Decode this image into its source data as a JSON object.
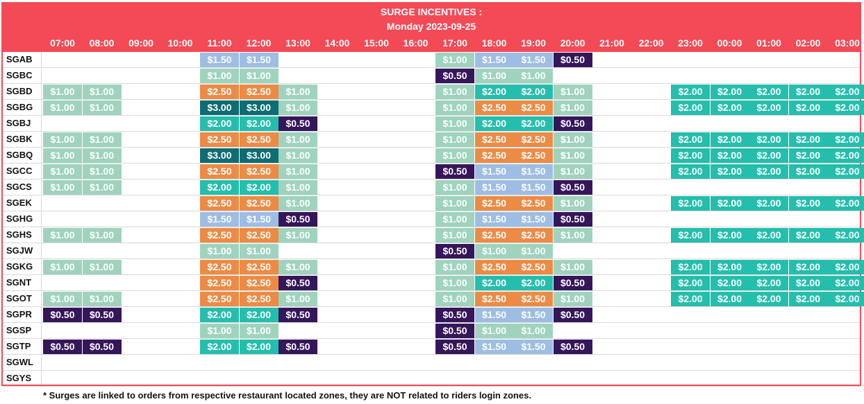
{
  "title_line1": "SURGE INCENTIVES :",
  "title_line2": "Monday 2023-09-25",
  "hours": [
    "07:00",
    "08:00",
    "09:00",
    "10:00",
    "11:00",
    "12:00",
    "13:00",
    "14:00",
    "15:00",
    "16:00",
    "17:00",
    "18:00",
    "19:00",
    "20:00",
    "21:00",
    "22:00",
    "23:00",
    "00:00",
    "01:00",
    "02:00",
    "03:00"
  ],
  "colors": {
    "$0.50": "#35165a",
    "$1.00": "#9fd3bd",
    "$1.50": "#9dbde4",
    "$2.00": "#25beac",
    "$2.50": "#ec8b45",
    "$3.00": "#0e6c73"
  },
  "rows": [
    {
      "zone": "SGAB",
      "cells": [
        "",
        "",
        "",
        "",
        "$1.50",
        "$1.50",
        "",
        "",
        "",
        "",
        "$1.00",
        "$1.50",
        "$1.50",
        "$0.50",
        "",
        "",
        "",
        "",
        "",
        "",
        ""
      ]
    },
    {
      "zone": "SGBC",
      "cells": [
        "",
        "",
        "",
        "",
        "$1.00",
        "$1.00",
        "",
        "",
        "",
        "",
        "$0.50",
        "$1.00",
        "$1.00",
        "",
        "",
        "",
        "",
        "",
        "",
        "",
        ""
      ]
    },
    {
      "zone": "SGBD",
      "cells": [
        "$1.00",
        "$1.00",
        "",
        "",
        "$2.50",
        "$2.50",
        "$1.00",
        "",
        "",
        "",
        "$1.00",
        "$2.00",
        "$2.00",
        "$1.00",
        "",
        "",
        "$2.00",
        "$2.00",
        "$2.00",
        "$2.00",
        "$2.00"
      ]
    },
    {
      "zone": "SGBG",
      "cells": [
        "$1.00",
        "$1.00",
        "",
        "",
        "$3.00",
        "$3.00",
        "$1.00",
        "",
        "",
        "",
        "$1.00",
        "$2.50",
        "$2.50",
        "$1.00",
        "",
        "",
        "$2.00",
        "$2.00",
        "$2.00",
        "$2.00",
        "$2.00"
      ]
    },
    {
      "zone": "SGBJ",
      "cells": [
        "",
        "",
        "",
        "",
        "$2.00",
        "$2.00",
        "$0.50",
        "",
        "",
        "",
        "$1.00",
        "$2.00",
        "$2.00",
        "$0.50",
        "",
        "",
        "",
        "",
        "",
        "",
        ""
      ]
    },
    {
      "zone": "SGBK",
      "cells": [
        "$1.00",
        "$1.00",
        "",
        "",
        "$2.50",
        "$2.50",
        "$1.00",
        "",
        "",
        "",
        "$1.00",
        "$2.50",
        "$2.50",
        "$1.00",
        "",
        "",
        "$2.00",
        "$2.00",
        "$2.00",
        "$2.00",
        "$2.00"
      ]
    },
    {
      "zone": "SGBQ",
      "cells": [
        "$1.00",
        "$1.00",
        "",
        "",
        "$3.00",
        "$3.00",
        "$1.00",
        "",
        "",
        "",
        "$1.00",
        "$2.50",
        "$2.50",
        "$1.00",
        "",
        "",
        "$2.00",
        "$2.00",
        "$2.00",
        "$2.00",
        "$2.00"
      ]
    },
    {
      "zone": "SGCC",
      "cells": [
        "$1.00",
        "$1.00",
        "",
        "",
        "$2.50",
        "$2.50",
        "$1.00",
        "",
        "",
        "",
        "$0.50",
        "$1.50",
        "$1.50",
        "$1.00",
        "",
        "",
        "$2.00",
        "$2.00",
        "$2.00",
        "$2.00",
        "$2.00"
      ]
    },
    {
      "zone": "SGCS",
      "cells": [
        "$1.00",
        "$1.00",
        "",
        "",
        "$2.00",
        "$2.00",
        "$1.00",
        "",
        "",
        "",
        "$1.00",
        "$1.50",
        "$1.50",
        "$0.50",
        "",
        "",
        "",
        "",
        "",
        "",
        ""
      ]
    },
    {
      "zone": "SGEK",
      "cells": [
        "",
        "",
        "",
        "",
        "$2.50",
        "$2.50",
        "$1.00",
        "",
        "",
        "",
        "$1.00",
        "$2.50",
        "$2.50",
        "$1.00",
        "",
        "",
        "$2.00",
        "$2.00",
        "$2.00",
        "$2.00",
        "$2.00"
      ]
    },
    {
      "zone": "SGHG",
      "cells": [
        "",
        "",
        "",
        "",
        "$1.50",
        "$1.50",
        "$0.50",
        "",
        "",
        "",
        "$1.00",
        "$1.50",
        "$1.50",
        "$0.50",
        "",
        "",
        "",
        "",
        "",
        "",
        ""
      ]
    },
    {
      "zone": "SGHS",
      "cells": [
        "$1.00",
        "$1.00",
        "",
        "",
        "$2.50",
        "$2.50",
        "$1.00",
        "",
        "",
        "",
        "$1.00",
        "$2.50",
        "$2.50",
        "$1.00",
        "",
        "",
        "$2.00",
        "$2.00",
        "$2.00",
        "$2.00",
        "$2.00"
      ]
    },
    {
      "zone": "SGJW",
      "cells": [
        "",
        "",
        "",
        "",
        "$1.00",
        "$1.00",
        "",
        "",
        "",
        "",
        "$0.50",
        "$1.00",
        "$1.00",
        "",
        "",
        "",
        "",
        "",
        "",
        "",
        ""
      ]
    },
    {
      "zone": "SGKG",
      "cells": [
        "$1.00",
        "$1.00",
        "",
        "",
        "$2.50",
        "$2.50",
        "$1.00",
        "",
        "",
        "",
        "$1.00",
        "$2.50",
        "$2.50",
        "$1.00",
        "",
        "",
        "$2.00",
        "$2.00",
        "$2.00",
        "$2.00",
        "$2.00"
      ]
    },
    {
      "zone": "SGNT",
      "cells": [
        "",
        "",
        "",
        "",
        "$2.50",
        "$2.50",
        "$0.50",
        "",
        "",
        "",
        "$1.00",
        "$2.00",
        "$2.00",
        "$0.50",
        "",
        "",
        "$2.00",
        "$2.00",
        "$2.00",
        "$2.00",
        "$2.00"
      ]
    },
    {
      "zone": "SGOT",
      "cells": [
        "$1.00",
        "$1.00",
        "",
        "",
        "$2.50",
        "$2.50",
        "$1.00",
        "",
        "",
        "",
        "$1.00",
        "$2.50",
        "$2.50",
        "$1.00",
        "",
        "",
        "$2.00",
        "$2.00",
        "$2.00",
        "$2.00",
        "$2.00"
      ]
    },
    {
      "zone": "SGPR",
      "cells": [
        "$0.50",
        "$0.50",
        "",
        "",
        "$2.00",
        "$2.00",
        "$0.50",
        "",
        "",
        "",
        "$0.50",
        "$1.50",
        "$1.50",
        "$0.50",
        "",
        "",
        "",
        "",
        "",
        "",
        ""
      ]
    },
    {
      "zone": "SGSP",
      "cells": [
        "",
        "",
        "",
        "",
        "$1.00",
        "$1.00",
        "",
        "",
        "",
        "",
        "$0.50",
        "$1.00",
        "$1.00",
        "",
        "",
        "",
        "",
        "",
        "",
        "",
        ""
      ]
    },
    {
      "zone": "SGTP",
      "cells": [
        "$0.50",
        "$0.50",
        "",
        "",
        "$2.00",
        "$2.00",
        "$0.50",
        "",
        "",
        "",
        "$0.50",
        "$1.50",
        "$1.50",
        "$0.50",
        "",
        "",
        "",
        "",
        "",
        "",
        ""
      ]
    },
    {
      "zone": "SGWL",
      "cells": [
        "",
        "",
        "",
        "",
        "",
        "",
        "",
        "",
        "",
        "",
        "",
        "",
        "",
        "",
        "",
        "",
        "",
        "",
        "",
        "",
        ""
      ]
    },
    {
      "zone": "SGYS",
      "cells": [
        "",
        "",
        "",
        "",
        "",
        "",
        "",
        "",
        "",
        "",
        "",
        "",
        "",
        "",
        "",
        "",
        "",
        "",
        "",
        "",
        ""
      ]
    }
  ],
  "footnote": "* Surges are linked to orders from respective restaurant located zones, they are NOT related to riders login zones."
}
